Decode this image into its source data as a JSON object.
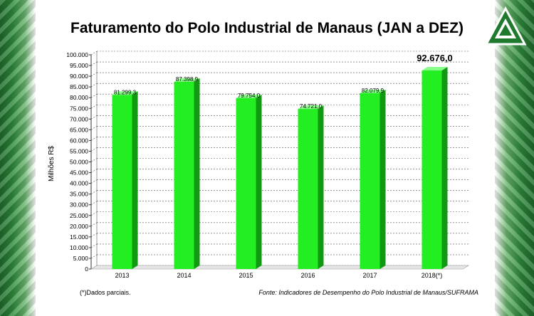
{
  "colors": {
    "bar": "#22ee22",
    "bar_side": "#119911",
    "bar_top": "#88ff88",
    "grid": "#555555"
  },
  "chart_data": {
    "type": "bar",
    "title": "Faturamento do Polo Industrial de Manaus (JAN a DEZ)",
    "ylabel": "Milhões R$",
    "xlabel": "",
    "ylim": [
      0,
      100000
    ],
    "y_step": 5000,
    "y_tick_labels": [
      "0",
      "5.000",
      "10.000",
      "15.000",
      "20.000",
      "25.000",
      "30.000",
      "35.000",
      "40.000",
      "45.000",
      "50.000",
      "55.000",
      "60.000",
      "65.000",
      "70.000",
      "75.000",
      "80.000",
      "85.000",
      "90.000",
      "95.000",
      "100.000"
    ],
    "categories": [
      "2013",
      "2014",
      "2015",
      "2016",
      "2017",
      "2018(*)"
    ],
    "values": [
      81299.3,
      87398.9,
      79754.0,
      74721.0,
      82079.9,
      92676.0
    ],
    "value_labels": [
      "81.299,3",
      "87.398,9",
      "79.754,0",
      "74.721,0",
      "82.079,9",
      "92.676,0"
    ]
  },
  "footnote": "(*)Dados parciais.",
  "source": "Fonte: Indicadores de Desempenho do Polo Industrial de Manaus/SUFRAMA"
}
